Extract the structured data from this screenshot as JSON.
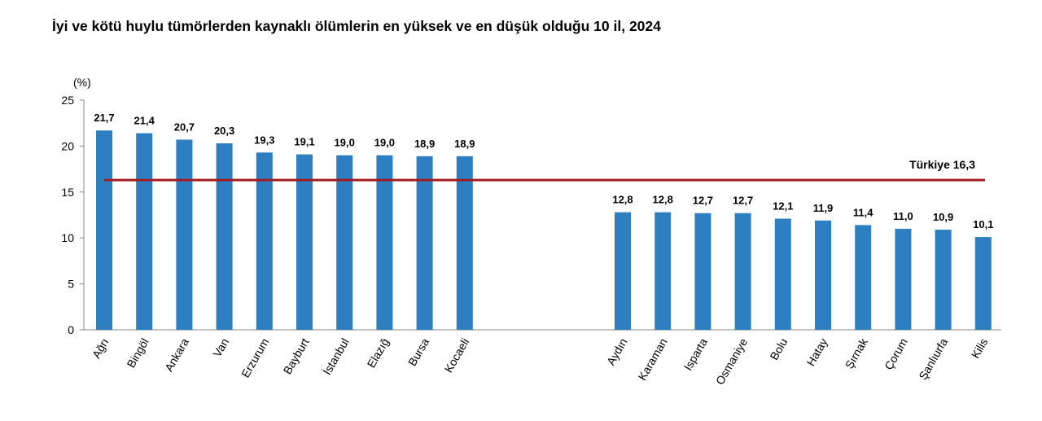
{
  "title": "İyi ve kötü huylu tümörlerden kaynaklı ölümlerin en yüksek ve en düşük olduğu 10 il, 2024",
  "chart_data": {
    "type": "bar",
    "ylabel": "(%)",
    "ylim": [
      0,
      25
    ],
    "yticks": [
      0,
      5,
      10,
      15,
      20,
      25
    ],
    "grid": false,
    "bar_color": "#2e7fc2",
    "reference_line": {
      "label": "Türkiye 16,3",
      "value": 16.3,
      "color": "#a31c22"
    },
    "groups": [
      {
        "categories": [
          "Ağrı",
          "Bingöl",
          "Ankara",
          "Van",
          "Erzurum",
          "Bayburt",
          "İstanbul",
          "Elazığ",
          "Bursa",
          "Kocaeli"
        ],
        "values": [
          21.7,
          21.4,
          20.7,
          20.3,
          19.3,
          19.1,
          19.0,
          19.0,
          18.9,
          18.9
        ],
        "labels": [
          "21,7",
          "21,4",
          "20,7",
          "20,3",
          "19,3",
          "19,1",
          "19,0",
          "19,0",
          "18,9",
          "18,9"
        ]
      },
      {
        "categories": [
          "Aydın",
          "Karaman",
          "Isparta",
          "Osmaniye",
          "Bolu",
          "Hatay",
          "Şırnak",
          "Çorum",
          "Şanlıurfa",
          "Kilis"
        ],
        "values": [
          12.8,
          12.8,
          12.7,
          12.7,
          12.1,
          11.9,
          11.4,
          11.0,
          10.9,
          10.1
        ],
        "labels": [
          "12,8",
          "12,8",
          "12,7",
          "12,7",
          "12,1",
          "11,9",
          "11,4",
          "11,0",
          "10,9",
          "10,1"
        ]
      }
    ]
  }
}
